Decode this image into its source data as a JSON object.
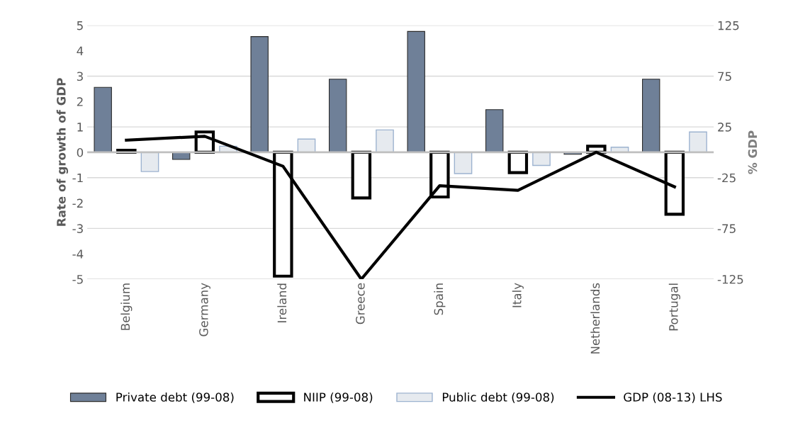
{
  "chart_data": {
    "type": "bar",
    "ylabel": "Rate of growth of GDP",
    "y2label": "% GDP",
    "categories": [
      "Belgium",
      "Germany",
      "Ireland",
      "Greece",
      "Spain",
      "Italy",
      "Netherlands",
      "Portugal"
    ],
    "series": [
      {
        "name": "Private debt (99-08)",
        "color": "#6f8098",
        "axis": "y2",
        "values": [
          64,
          -7,
          114,
          72,
          119,
          42,
          -2,
          72
        ]
      },
      {
        "name": "NIIP (99-08)",
        "color": "#000000",
        "axis": "y2",
        "values": [
          2,
          20,
          -122,
          -45,
          -44,
          -20,
          6,
          -61
        ]
      },
      {
        "name": "Public debt (99-08)",
        "color": "#9db3d0",
        "axis": "y2",
        "values": [
          -19,
          6,
          13,
          22,
          -21,
          -13,
          5,
          20
        ]
      },
      {
        "name": "GDP (08-13) LHS",
        "type": "line",
        "color": "#000000",
        "values": [
          0.48,
          0.63,
          -0.55,
          -5.0,
          -1.32,
          -1.5,
          0.0,
          -1.36
        ]
      }
    ],
    "ylim": [
      -5,
      5
    ],
    "yticks": [
      -5,
      -4,
      -3,
      -2,
      -1,
      0,
      1,
      2,
      3,
      4,
      5
    ],
    "y2lim": [
      -125,
      125
    ],
    "y2ticks": [
      -125,
      -75,
      -25,
      25,
      75,
      125
    ],
    "grid": "y",
    "legend": "bottom"
  }
}
